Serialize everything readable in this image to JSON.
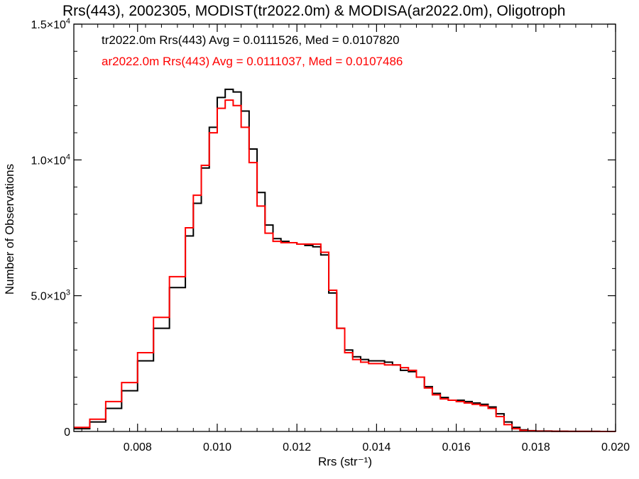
{
  "chart_data": {
    "type": "line",
    "title": "Rrs(443), 2002305, MODIST(tr2022.0m) & MODISA(ar2022.0m), Oligotroph",
    "xlabel": "Rrs (str⁻¹)",
    "ylabel": "Number of Observations",
    "xlim": [
      0.0064,
      0.02
    ],
    "ylim": [
      0,
      15000
    ],
    "x_ticks": [
      {
        "value": 0.008,
        "label": "0.008"
      },
      {
        "value": 0.01,
        "label": "0.010"
      },
      {
        "value": 0.012,
        "label": "0.012"
      },
      {
        "value": 0.014,
        "label": "0.014"
      },
      {
        "value": 0.016,
        "label": "0.016"
      },
      {
        "value": 0.018,
        "label": "0.018"
      },
      {
        "value": 0.02,
        "label": "0.020"
      }
    ],
    "y_ticks": [
      {
        "value": 0,
        "label": "0"
      },
      {
        "value": 5000,
        "label": "5.0×10",
        "exp": "3"
      },
      {
        "value": 10000,
        "label": "1.0×10",
        "exp": "4"
      },
      {
        "value": 15000,
        "label": "1.5×10",
        "exp": "4"
      }
    ],
    "grid": false,
    "legend_position": "top-left",
    "series": [
      {
        "name": "tr2022.0m Rrs(443) Avg = 0.0111526, Med = 0.0107820",
        "color": "#000000",
        "x": [
          0.0064,
          0.0068,
          0.0072,
          0.0076,
          0.008,
          0.0084,
          0.0088,
          0.0092,
          0.0094,
          0.0096,
          0.0098,
          0.01,
          0.0102,
          0.0104,
          0.0106,
          0.0108,
          0.011,
          0.0112,
          0.0114,
          0.0116,
          0.0118,
          0.012,
          0.0122,
          0.0124,
          0.0126,
          0.0128,
          0.013,
          0.0132,
          0.0134,
          0.0136,
          0.0138,
          0.014,
          0.0142,
          0.0144,
          0.0146,
          0.0148,
          0.015,
          0.0152,
          0.0154,
          0.0156,
          0.0158,
          0.016,
          0.0162,
          0.0164,
          0.0166,
          0.0168,
          0.017,
          0.0172,
          0.0174,
          0.0176,
          0.0178,
          0.018,
          0.0184,
          0.0188,
          0.0192,
          0.0196,
          0.02
        ],
        "y": [
          100,
          350,
          850,
          1500,
          2600,
          3800,
          5300,
          7200,
          8400,
          9700,
          11200,
          12300,
          12600,
          12500,
          11800,
          10400,
          8800,
          7600,
          7100,
          7000,
          6950,
          6900,
          6850,
          6800,
          6500,
          5100,
          3800,
          3000,
          2750,
          2650,
          2600,
          2600,
          2550,
          2450,
          2250,
          2200,
          2000,
          1650,
          1400,
          1250,
          1150,
          1150,
          1100,
          1050,
          1000,
          900,
          650,
          350,
          150,
          60,
          30,
          15,
          5,
          3,
          2,
          1,
          0
        ]
      },
      {
        "name": "ar2022.0m Rrs(443) Avg = 0.0111037, Med = 0.0107486",
        "color": "#ff0000",
        "x": [
          0.0064,
          0.0068,
          0.0072,
          0.0076,
          0.008,
          0.0084,
          0.0088,
          0.0092,
          0.0094,
          0.0096,
          0.0098,
          0.01,
          0.0102,
          0.0104,
          0.0106,
          0.0108,
          0.011,
          0.0112,
          0.0114,
          0.0116,
          0.0118,
          0.012,
          0.0122,
          0.0124,
          0.0126,
          0.0128,
          0.013,
          0.0132,
          0.0134,
          0.0136,
          0.0138,
          0.014,
          0.0142,
          0.0144,
          0.0146,
          0.0148,
          0.015,
          0.0152,
          0.0154,
          0.0156,
          0.0158,
          0.016,
          0.0162,
          0.0164,
          0.0166,
          0.0168,
          0.017,
          0.0172,
          0.0174,
          0.0176,
          0.0178,
          0.018,
          0.0184,
          0.0188,
          0.0192,
          0.0196,
          0.02
        ],
        "y": [
          150,
          450,
          1100,
          1800,
          2900,
          4200,
          5700,
          7500,
          8700,
          9800,
          11000,
          11900,
          12200,
          12000,
          11200,
          9900,
          8300,
          7300,
          7000,
          6950,
          6950,
          6900,
          6900,
          6900,
          6600,
          5200,
          3800,
          2900,
          2650,
          2550,
          2500,
          2500,
          2450,
          2450,
          2350,
          2250,
          2000,
          1600,
          1350,
          1200,
          1150,
          1100,
          1050,
          1000,
          950,
          850,
          550,
          250,
          100,
          40,
          20,
          10,
          5,
          3,
          2,
          1,
          0
        ]
      }
    ]
  }
}
